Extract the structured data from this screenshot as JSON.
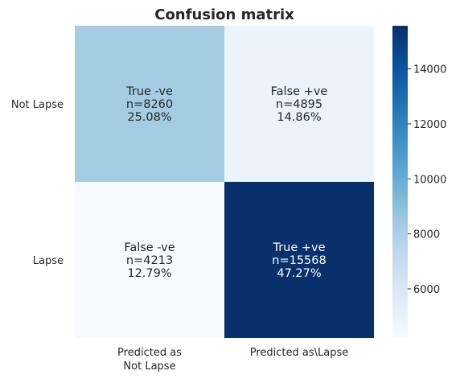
{
  "chart_data": {
    "type": "heatmap",
    "title": "Confusion matrix",
    "row_labels": [
      "Not Lapse",
      "Lapse"
    ],
    "col_labels": [
      [
        "Predicted as",
        "Not Lapse"
      ],
      [
        "Predicted as\\Lapse"
      ]
    ],
    "values": [
      [
        8260,
        4895
      ],
      [
        4213,
        15568
      ]
    ],
    "annotations": [
      [
        [
          "True -ve",
          "n=8260",
          "25.08%"
        ],
        [
          "False +ve",
          "n=4895",
          "14.86%"
        ]
      ],
      [
        [
          "False -ve",
          "n=4213",
          "12.79%"
        ],
        [
          "True +ve",
          "n=15568",
          "47.27%"
        ]
      ]
    ],
    "colorbar": {
      "min": 4213,
      "max": 15568,
      "ticks": [
        6000,
        8000,
        10000,
        12000,
        14000
      ],
      "colormap": "Blues"
    },
    "colors": {
      "text_dark": "#262626",
      "text_light": "#ffffff"
    }
  }
}
